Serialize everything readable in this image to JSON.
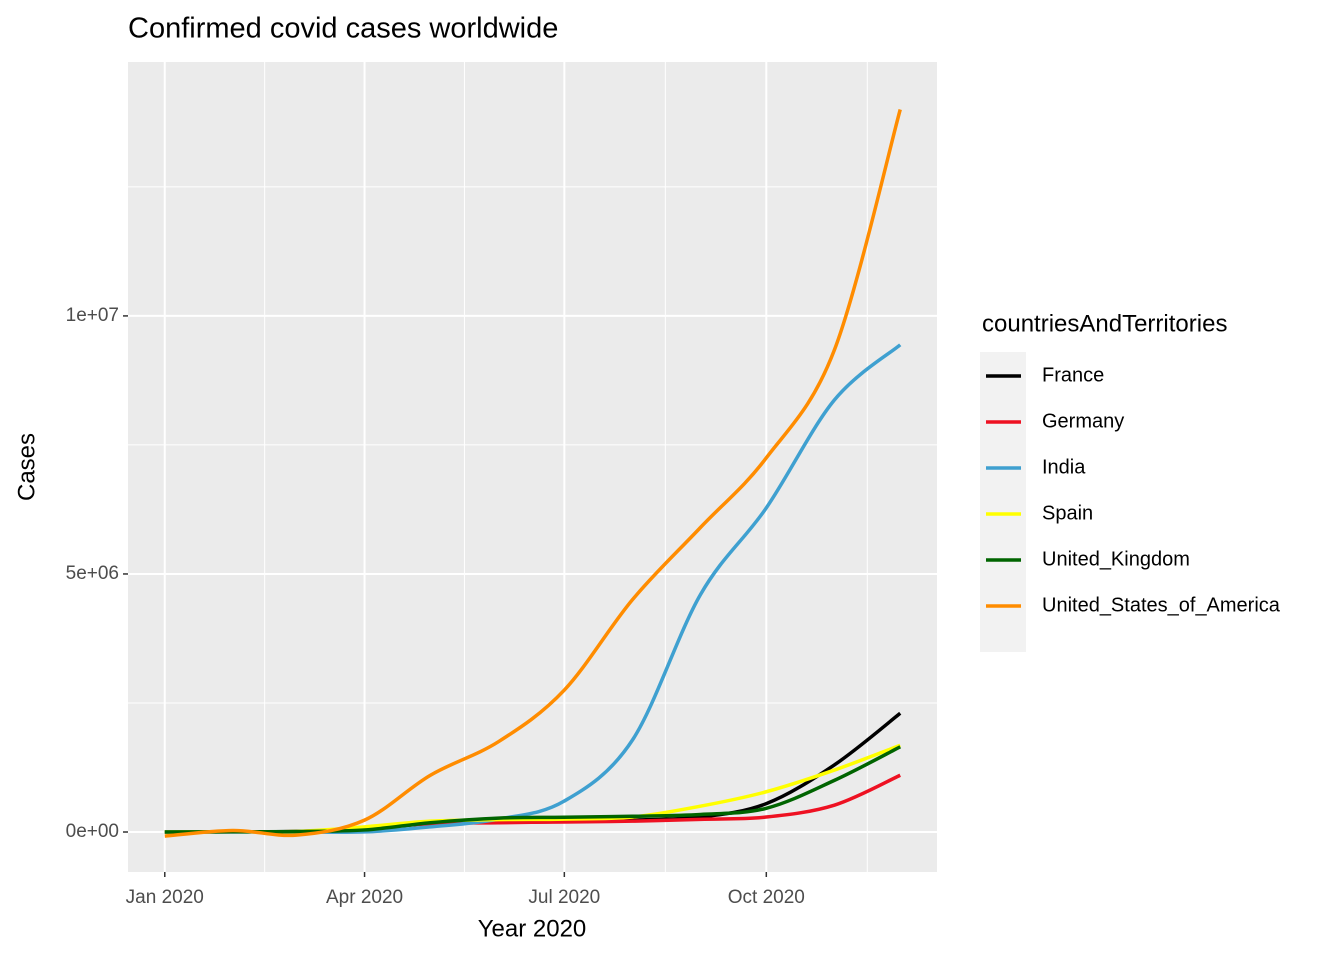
{
  "chart_data": {
    "type": "line",
    "title": "Confirmed covid cases worldwide",
    "x_label": "Year 2020",
    "y_label": "Cases",
    "legend_title": "countriesAndTerritories",
    "legend_position": "right",
    "grid": true,
    "x": [
      "2020-01",
      "2020-02",
      "2020-03",
      "2020-04",
      "2020-05",
      "2020-06",
      "2020-07",
      "2020-08",
      "2020-09",
      "2020-10",
      "2020-11",
      "2020-12"
    ],
    "xlim": [
      "2020-01",
      "2020-12"
    ],
    "xticks": [
      {
        "value": "2020-01",
        "label": "Jan 2020"
      },
      {
        "value": "2020-04",
        "label": "Apr 2020"
      },
      {
        "value": "2020-07",
        "label": "Jul 2020"
      },
      {
        "value": "2020-10",
        "label": "Oct 2020"
      }
    ],
    "ylim": [
      -775000,
      14920000
    ],
    "yticks": [
      {
        "value": 0,
        "label": "0e+00"
      },
      {
        "value": 5000000,
        "label": "5e+06"
      },
      {
        "value": 10000000,
        "label": "1e+07"
      }
    ],
    "y_minor_ticks": [
      2500000,
      7500000,
      12500000
    ],
    "series": [
      {
        "name": "France",
        "color": "#000000",
        "values": [
          0,
          5000,
          10000,
          50000,
          170000,
          190000,
          200000,
          230000,
          290000,
          550000,
          1300000,
          2300000
        ]
      },
      {
        "name": "Germany",
        "color": "#ee1122",
        "values": [
          0,
          5000,
          10000,
          70000,
          160000,
          180000,
          195000,
          210000,
          245000,
          290000,
          520000,
          1100000
        ]
      },
      {
        "name": "India",
        "color": "#3fa0d0",
        "values": [
          0,
          0,
          0,
          2000,
          100000,
          250000,
          600000,
          1780000,
          4600000,
          6280000,
          8370000,
          9440000
        ]
      },
      {
        "name": "Spain",
        "color": "#ffff00",
        "values": [
          0,
          5000,
          10000,
          100000,
          210000,
          240000,
          250000,
          290000,
          500000,
          780000,
          1200000,
          1680000
        ]
      },
      {
        "name": "United_Kingdom",
        "color": "#006400",
        "values": [
          0,
          5000,
          10000,
          40000,
          180000,
          270000,
          285000,
          305000,
          340000,
          460000,
          1000000,
          1650000
        ]
      },
      {
        "name": "United_States_of_America",
        "color": "#ff8c00",
        "values": [
          -80000,
          30000,
          -60000,
          230000,
          1100000,
          1750000,
          2750000,
          4500000,
          5900000,
          7250000,
          9340000,
          14000000
        ]
      }
    ]
  }
}
